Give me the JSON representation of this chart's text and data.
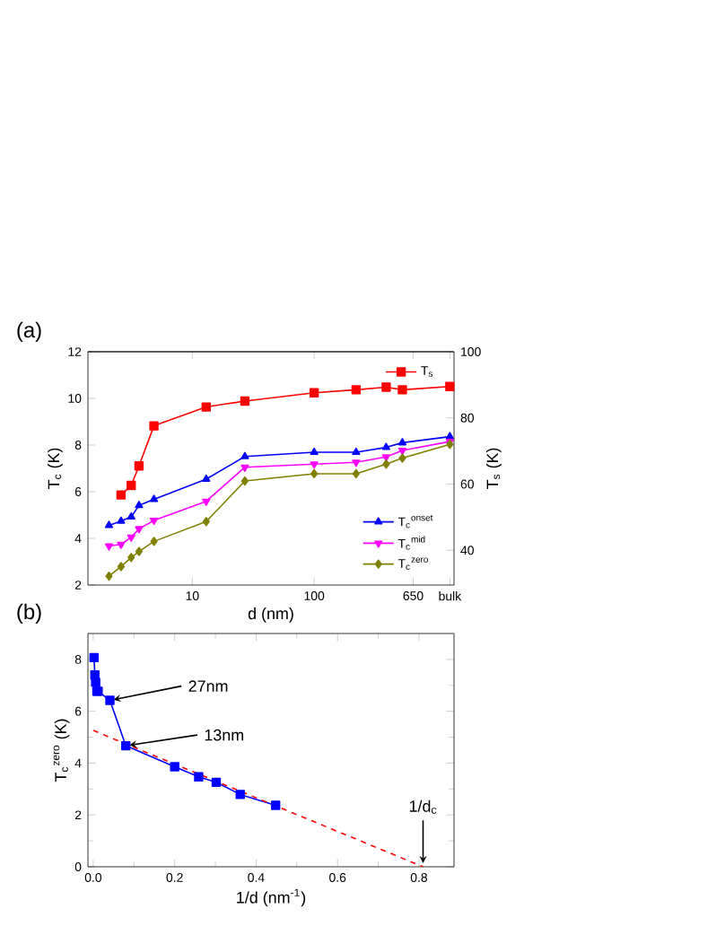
{
  "chart_data": [
    {
      "type": "line",
      "xlabel": "d (nm)",
      "ylabel": "T$_{c}$ (K)",
      "y2label": "T$_{s}$ (K)",
      "log": "x",
      "x": [
        2.07,
        2.6,
        3.15,
        3.65,
        4.84,
        13,
        27,
        100,
        221,
        390,
        530,
        1300
      ],
      "xlim": [
        1.39,
        1406
      ],
      "xticks": [
        10,
        100,
        {
          "value": 650,
          "label": "650"
        },
        {
          "value": 1300,
          "label": "bulk"
        }
      ],
      "ylim": [
        2,
        12
      ],
      "yticks": [
        2,
        4,
        6,
        8,
        10,
        12
      ],
      "y2lim": [
        29.5,
        100
      ],
      "y2ticks": [
        40,
        60,
        80,
        100
      ],
      "legend": "right",
      "annotations": [
        "(a)"
      ],
      "series": [
        {
          "name": "T$_{s}$",
          "color": "#ff0000",
          "axis": "y2",
          "marker": "square",
          "values": [
            null,
            56.7,
            59.6,
            65.5,
            77.6,
            83.3,
            85.1,
            87.6,
            88.5,
            89.3,
            88.5,
            89.5
          ]
        },
        {
          "name": "T$_{c}$$^{onset}$",
          "color": "#0000ff",
          "marker": "triangle",
          "values": [
            4.56,
            4.74,
            4.92,
            5.41,
            5.67,
            6.54,
            7.51,
            7.69,
            7.69,
            7.9,
            8.1,
            8.36
          ]
        },
        {
          "name": "T$_{c}$$^{mid}$",
          "color": "#ff00ff",
          "marker": "triangle down",
          "values": [
            3.67,
            3.74,
            4.05,
            4.41,
            4.77,
            5.59,
            7.05,
            7.18,
            7.26,
            7.49,
            7.77,
            8.15
          ]
        },
        {
          "name": "T$_{c}$$^{zero}$",
          "color": "#808000",
          "marker": "diamond",
          "values": [
            2.38,
            2.79,
            3.18,
            3.44,
            3.87,
            4.72,
            6.46,
            6.77,
            6.77,
            7.18,
            7.44,
            8.03
          ]
        }
      ]
    },
    {
      "type": "line",
      "xlabel": "1/d (nm$^{-1}$)",
      "ylabel": "T$_{c}$$^{zero}$ (K)",
      "xlim": [
        -0.013,
        0.886
      ],
      "xticks": [
        {
          "value": 0,
          "label": "0.0"
        },
        0.2,
        0.4,
        0.6,
        0.8
      ],
      "ylim": [
        0,
        9
      ],
      "yticks": [
        0,
        2,
        4,
        6,
        8
      ],
      "annotations": [
        "(b)",
        {
          "text": "27nm",
          "x": 0.041,
          "y": 6.42
        },
        {
          "text": "13nm",
          "x": 0.08,
          "y": 4.67
        },
        {
          "text": "1/d$_{c}$",
          "x": 0.81,
          "y": 0
        }
      ],
      "series": [
        {
          "color": "#0000ff",
          "marker": "square",
          "x": [
            0.448,
            0.361,
            0.302,
            0.259,
            0.2,
            0.08,
            0.041,
            0.012,
            0.009,
            0.006,
            0.004,
            0.002
          ],
          "values": [
            2.37,
            2.79,
            3.26,
            3.47,
            3.86,
            4.67,
            6.42,
            6.77,
            6.77,
            7.12,
            7.4,
            8.07
          ]
        },
        {
          "color": "#ff0000",
          "marker": "none",
          "line_style": "dashed",
          "x": [
            0,
            0.81
          ],
          "values": [
            5.26,
            0
          ]
        }
      ]
    }
  ]
}
